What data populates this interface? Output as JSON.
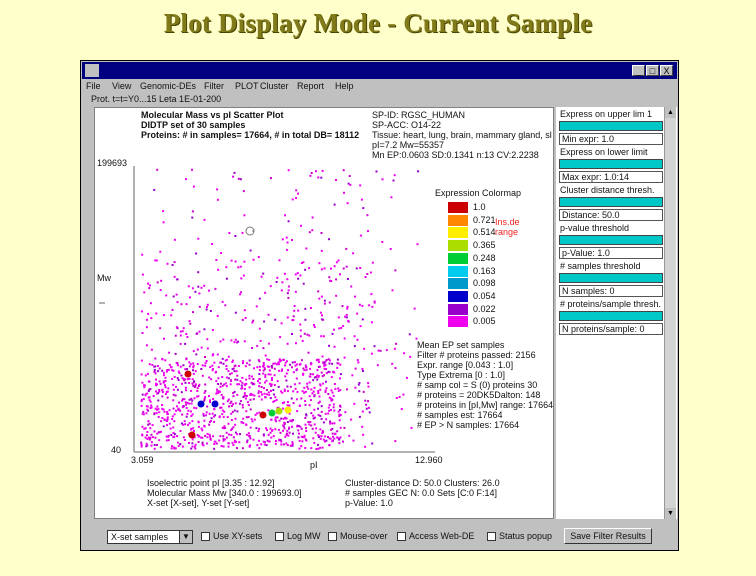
{
  "slide_title": "Plot Display Mode - Current Sample",
  "menu": [
    "File",
    "View",
    "Genomic-DEs",
    "Filter",
    "PLOT",
    "Cluster",
    "Report",
    "Help"
  ],
  "window_buttons": [
    "_",
    "□",
    "X"
  ],
  "file_line": "Prot. t=t=Y0...15 Leta 1E-01-200",
  "plot": {
    "title_lines": [
      "Molecular Mass vs pI Scatter Plot",
      "DIDTP set of 30 samples",
      "Proteins: # in samples= 17664, # in total DB= 18112"
    ],
    "y_top": "199693",
    "y_label": "Mw",
    "y_bottom": "40",
    "x_left": "3.059",
    "x_label": "pI",
    "x_right": "12.960",
    "protein_info": [
      "SP-ID: RGSC_HUMAN",
      "SP-ACC: O14-22",
      "Tissue: heart, lung, brain, mammary gland, sl",
      "pI=7.2  Mw=55357",
      "Mn EP:0.0603 SD:0.1341 n:13 CV:2.2238"
    ],
    "colormap_title": "Expression Colormap",
    "colormap_note": [
      "Ins.de",
      "range"
    ],
    "stats_lines": [
      "Mean EP set samples",
      "Filter # proteins passed: 2156",
      "Expr. range [0.043 : 1.0]",
      "Type Extrema [0 : 1.0]",
      "# samp col = S (0) proteins 30",
      "# proteins = 20DK5Dalton: 148",
      "# proteins in [pI,Mw] range: 17664",
      "# samples est: 17664",
      "# EP > N samples: 17664"
    ],
    "bottom_left": [
      "Isoelectric point pI [3.35 : 12.92]",
      "Molecular Mass Mw [340.0 : 199693.0]",
      "X-set [X-set], Y-set [Y-set]"
    ],
    "bottom_right": [
      "Cluster-distance D: 50.0  Clusters: 26.0",
      "# samples GEC N: 0.0  Sets [C:0 F:14]",
      "p-Value: 1.0"
    ]
  },
  "colormap": [
    {
      "value": "1.0",
      "color": "#cc0000"
    },
    {
      "value": "0.721",
      "color": "#ff8800"
    },
    {
      "value": "0.514",
      "color": "#ffee00"
    },
    {
      "value": "0.365",
      "color": "#aadd00"
    },
    {
      "value": "0.248",
      "color": "#00cc33"
    },
    {
      "value": "0.163",
      "color": "#00ccee"
    },
    {
      "value": "0.098",
      "color": "#0099cc"
    },
    {
      "value": "0.054",
      "color": "#0000cc"
    },
    {
      "value": "0.022",
      "color": "#9900cc"
    },
    {
      "value": "0.005",
      "color": "#ee00ee"
    }
  ],
  "side": {
    "expr_upper_label": "Express on upper lim 1",
    "min_expr": "Min expr: 1.0",
    "expr_lower_label": "Express on lower limit",
    "max_expr": "Max expr: 1.0:14",
    "cluster_label": "Cluster distance thresh.",
    "distance": "Distance: 50.0",
    "pvalue_label": "p-value threshold",
    "pvalue": "p-Value: 1.0",
    "nsamples_label": "# samples threshold",
    "nsamples": "N samples: 0",
    "prot_label": "# proteins/sample thresh.",
    "prot": "N proteins/sample: 0"
  },
  "bottom": {
    "dropdown": "X-set samples",
    "checkboxes": [
      "Use XY-sets",
      "Log MW",
      "Mouse-over",
      "Access Web-DE",
      "Status popup"
    ],
    "button": "Save Filter Results"
  }
}
